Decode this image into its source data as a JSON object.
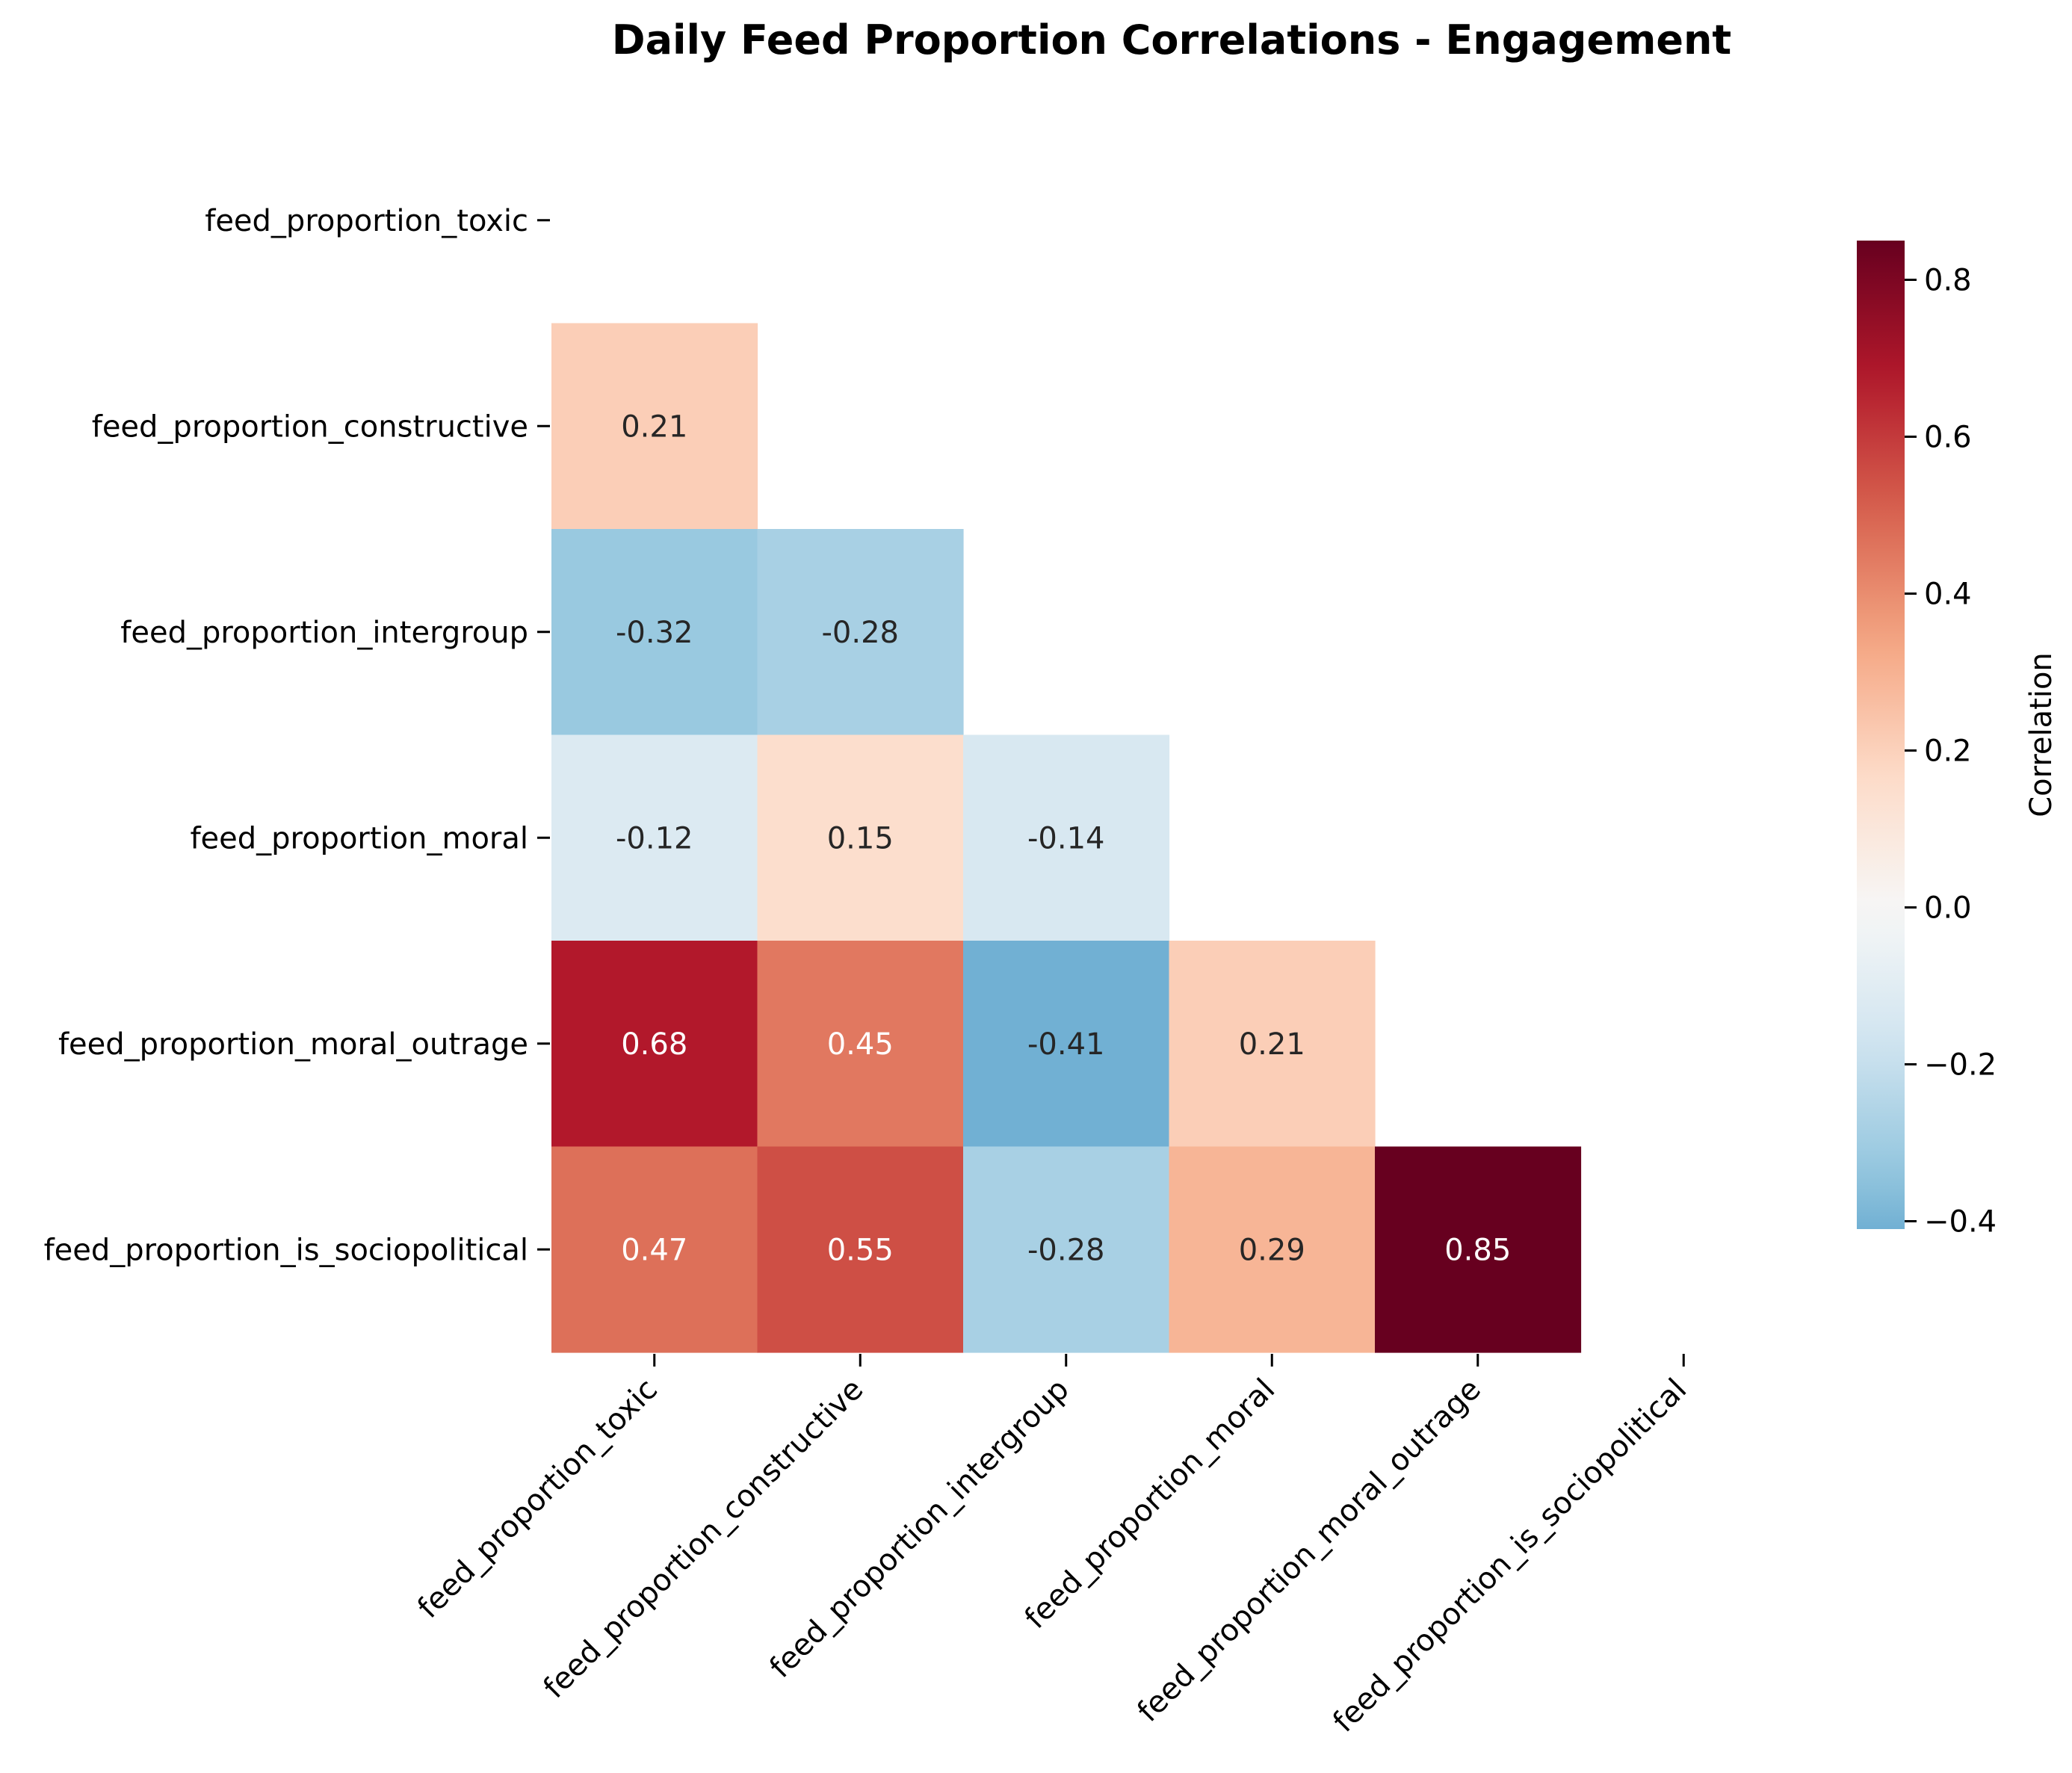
{
  "chart_data": {
    "type": "heatmap",
    "title": "Daily Feed Proportion Correlations - Engagement",
    "variables": [
      "feed_proportion_toxic",
      "feed_proportion_constructive",
      "feed_proportion_intergroup",
      "feed_proportion_moral",
      "feed_proportion_moral_outrage",
      "feed_proportion_is_sociopolitical"
    ],
    "mask": "upper triangle including diagonal",
    "matrix": [
      [
        null,
        null,
        null,
        null,
        null,
        null
      ],
      [
        0.21,
        null,
        null,
        null,
        null,
        null
      ],
      [
        -0.32,
        -0.28,
        null,
        null,
        null,
        null
      ],
      [
        -0.12,
        0.15,
        -0.14,
        null,
        null,
        null
      ],
      [
        0.68,
        0.45,
        -0.41,
        0.21,
        null,
        null
      ],
      [
        0.47,
        0.55,
        -0.28,
        0.29,
        0.85,
        null
      ]
    ],
    "colorbar": {
      "label": "Correlation",
      "range": [
        -0.41,
        0.85
      ],
      "ticks": [
        -0.4,
        -0.2,
        0.0,
        0.2,
        0.4,
        0.6,
        0.8
      ],
      "tick_labels": [
        "−0.4",
        "−0.2",
        "0.0",
        "0.2",
        "0.4",
        "0.6",
        "0.8"
      ],
      "colormap": "RdBu_r",
      "center": 0
    }
  }
}
